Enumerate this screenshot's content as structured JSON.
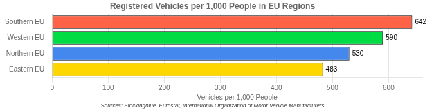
{
  "chart_data": {
    "type": "bar",
    "orientation": "horizontal",
    "title": "Registered Vehicles per 1,000 People in EU Regions",
    "categories": [
      "Southern EU",
      "Western EU",
      "Northern EU",
      "Eastern EU"
    ],
    "values": [
      642,
      590,
      530,
      483
    ],
    "colors": [
      "#FF6347",
      "#00DD44",
      "#4488EE",
      "#FFD700"
    ],
    "xlabel": "Vehicles per 1,000 People",
    "xlim": [
      0,
      660
    ],
    "xticks": [
      0,
      100,
      200,
      300,
      400,
      500,
      600
    ],
    "grid": true,
    "data_labels": true,
    "annotations": [
      "Sources: Stockingblue, Eurostat, International Organization of Motor Vehicle Manufacturers"
    ]
  }
}
